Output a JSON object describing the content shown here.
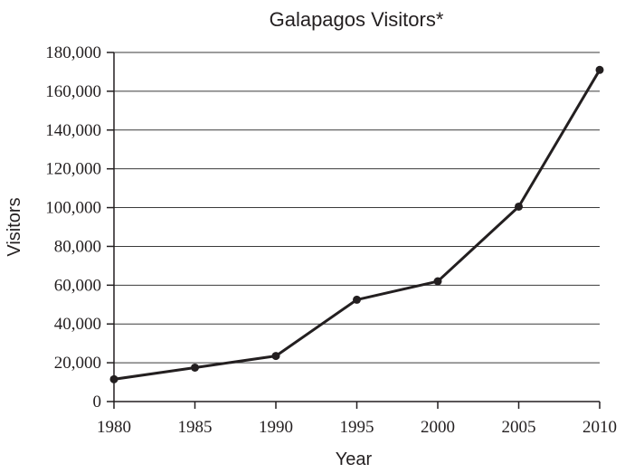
{
  "chart_data": {
    "type": "line",
    "title": "Galapagos Visitors*",
    "xlabel": "Year",
    "ylabel": "Visitors",
    "x": [
      1980,
      1985,
      1990,
      1995,
      2000,
      2005,
      2010
    ],
    "series": [
      {
        "values": [
          11500,
          17500,
          23500,
          52500,
          62000,
          100500,
          171000
        ]
      }
    ],
    "xlim": [
      1980,
      2010
    ],
    "ylim": [
      0,
      180000
    ],
    "xticks": [
      "1980",
      "1985",
      "1990",
      "1995",
      "2000",
      "2005",
      "2010"
    ],
    "yticks": [
      "0",
      "20,000",
      "40,000",
      "60,000",
      "80,000",
      "100,000",
      "120,000",
      "140,000",
      "160,000",
      "180,000"
    ],
    "grid": true,
    "legend": "none",
    "colors": {
      "line": "#231f20",
      "grid": "#3a3a3a",
      "text": "#231f20"
    }
  }
}
